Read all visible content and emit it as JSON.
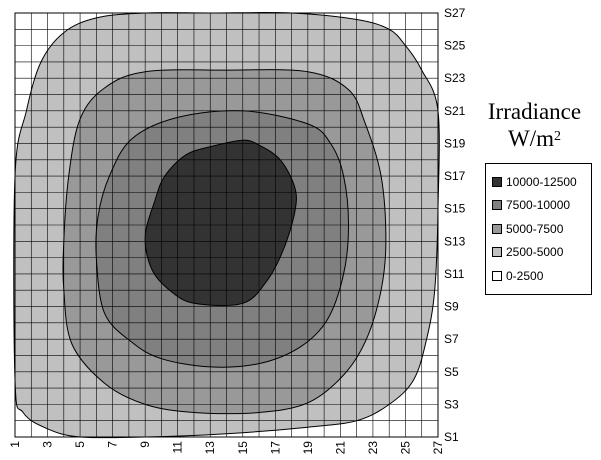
{
  "chart_data": {
    "type": "heatmap",
    "title": "",
    "xlabel": "",
    "ylabel": "",
    "legend_title": "Irradiance",
    "legend_unit_base": "W/m",
    "legend_unit_exp": "2",
    "legend_position": "right",
    "grid": true,
    "x_ticks": [
      "1",
      "3",
      "5",
      "7",
      "9",
      "11",
      "13",
      "15",
      "17",
      "19",
      "21",
      "23",
      "25",
      "27"
    ],
    "y_ticks": [
      "S1",
      "S3",
      "S5",
      "S7",
      "S9",
      "S11",
      "S13",
      "S15",
      "S17",
      "S19",
      "S21",
      "S23",
      "S25",
      "S27"
    ],
    "x_range": [
      1,
      27
    ],
    "y_range": [
      1,
      27
    ],
    "levels": [
      {
        "label": "10000-12500",
        "min": 10000,
        "max": 12500,
        "color": "#333333"
      },
      {
        "label": "7500-10000",
        "min": 7500,
        "max": 10000,
        "color": "#808080"
      },
      {
        "label": "5000-7500",
        "min": 5000,
        "max": 7500,
        "color": "#999999"
      },
      {
        "label": "2500-5000",
        "min": 2500,
        "max": 5000,
        "color": "#c0c0c0"
      },
      {
        "label": "0-2500",
        "min": 0,
        "max": 2500,
        "color": "#ffffff"
      }
    ],
    "contours": [
      {
        "level": "2500-5000",
        "points": [
          [
            1,
            4.5
          ],
          [
            1.5,
            2.5
          ],
          [
            3,
            1.5
          ],
          [
            5,
            1
          ],
          [
            9,
            1
          ],
          [
            14,
            1.2
          ],
          [
            19,
            1.6
          ],
          [
            22,
            2
          ],
          [
            24,
            3
          ],
          [
            25.5,
            4.5
          ],
          [
            26.3,
            7
          ],
          [
            26.8,
            10
          ],
          [
            27,
            15
          ],
          [
            27,
            21
          ],
          [
            26,
            23.5
          ],
          [
            25,
            25
          ],
          [
            24,
            26
          ],
          [
            22,
            26.6
          ],
          [
            18,
            27
          ],
          [
            13,
            27
          ],
          [
            9,
            27
          ],
          [
            6,
            26.7
          ],
          [
            4,
            25.8
          ],
          [
            2.6,
            24
          ],
          [
            1.7,
            21
          ],
          [
            1,
            17
          ]
        ]
      },
      {
        "level": "5000-7500",
        "points": [
          [
            4,
            10
          ],
          [
            4.5,
            6.7
          ],
          [
            6.5,
            4.3
          ],
          [
            9,
            3
          ],
          [
            12,
            2.5
          ],
          [
            16,
            2.5
          ],
          [
            19,
            3.1
          ],
          [
            21.2,
            4.8
          ],
          [
            22.6,
            7
          ],
          [
            23.5,
            10
          ],
          [
            23.8,
            13
          ],
          [
            23.5,
            17
          ],
          [
            22.5,
            20.3
          ],
          [
            21.5,
            22.3
          ],
          [
            19,
            23.4
          ],
          [
            14,
            23.5
          ],
          [
            9,
            23.4
          ],
          [
            6.5,
            22.4
          ],
          [
            5,
            20.5
          ],
          [
            4.3,
            17
          ],
          [
            4,
            13
          ]
        ]
      },
      {
        "level": "7500-10000",
        "points": [
          [
            6,
            12
          ],
          [
            6.5,
            8.6
          ],
          [
            8.2,
            6.8
          ],
          [
            10,
            5.8
          ],
          [
            13,
            5.3
          ],
          [
            16,
            5.5
          ],
          [
            18.5,
            6.5
          ],
          [
            20.2,
            8.2
          ],
          [
            21.2,
            11
          ],
          [
            21.5,
            14
          ],
          [
            21.2,
            17
          ],
          [
            20.4,
            19
          ],
          [
            19,
            20.2
          ],
          [
            15,
            21
          ],
          [
            11,
            20.6
          ],
          [
            8.2,
            19.3
          ],
          [
            6.8,
            17
          ],
          [
            6.1,
            14.5
          ]
        ]
      },
      {
        "level": "10000-12500",
        "points": [
          [
            9,
            13.3
          ],
          [
            9.4,
            11.3
          ],
          [
            10.5,
            10
          ],
          [
            12,
            9.2
          ],
          [
            15,
            9.2
          ],
          [
            16.5,
            10.6
          ],
          [
            17.5,
            12.5
          ],
          [
            18.2,
            14.8
          ],
          [
            18.2,
            16.3
          ],
          [
            17.3,
            18
          ],
          [
            16,
            18.9
          ],
          [
            15,
            19.2
          ],
          [
            13,
            18.8
          ],
          [
            11.5,
            18.3
          ],
          [
            10.2,
            17
          ],
          [
            9.6,
            15.5
          ]
        ]
      }
    ]
  }
}
